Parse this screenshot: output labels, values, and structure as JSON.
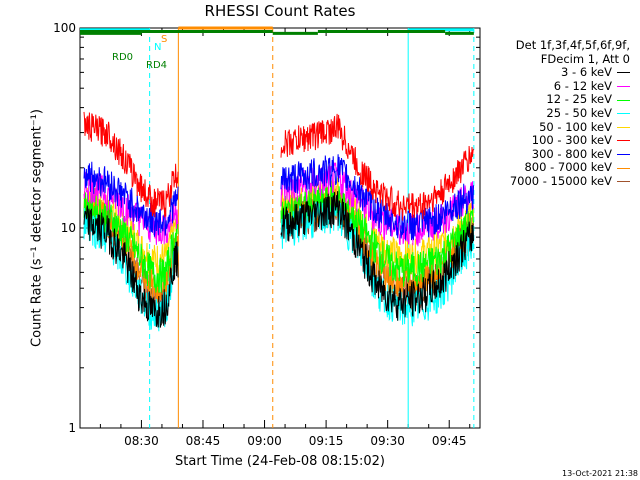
{
  "chart_data": {
    "type": "line",
    "title": "RHESSI Count Rates",
    "xlabel": "Start Time (24-Feb-08 08:15:02)",
    "ylabel": "Count Rate (s⁻¹ detector segment⁻¹)",
    "yscale": "log",
    "ylim": [
      1,
      100
    ],
    "xlim": [
      "08:15:02",
      "09:52:30"
    ],
    "x_ticks": [
      "08:30",
      "08:45",
      "09:00",
      "09:15",
      "09:30",
      "09:45"
    ],
    "y_ticks": [
      "1",
      "10",
      "100"
    ],
    "legend_header": [
      "Det 1f,3f,4f,5f,6f,9f,",
      "FDecim 1, Att 0"
    ],
    "legend_position": "right",
    "grid": false,
    "series": [
      {
        "name": "3 - 6 keV",
        "color": "#000000",
        "times": [
          "08:16",
          "08:22",
          "08:26",
          "08:30",
          "08:33",
          "08:36",
          "08:38",
          "09:18",
          "09:23",
          "09:28",
          "09:33",
          "09:38",
          "09:43",
          "09:47",
          "09:51"
        ],
        "values": [
          11,
          9.5,
          7,
          4.5,
          3.8,
          4.2,
          7,
          13,
          8,
          5,
          4.3,
          4.6,
          5.4,
          7.5,
          9.5
        ]
      },
      {
        "name": "6 - 12 keV",
        "color": "#ff00ff",
        "times": [
          "08:16",
          "08:22",
          "08:26",
          "08:30",
          "08:33",
          "08:36",
          "08:38",
          "09:18",
          "09:23",
          "09:28",
          "09:33",
          "09:38",
          "09:43",
          "09:47",
          "09:51"
        ],
        "values": [
          17,
          15,
          13,
          11,
          10,
          10,
          12,
          18,
          14,
          11,
          10,
          10,
          11,
          13,
          15
        ]
      },
      {
        "name": "12 - 25 keV",
        "color": "#00ff00",
        "times": [
          "08:16",
          "08:22",
          "08:26",
          "08:30",
          "08:33",
          "08:36",
          "08:38",
          "09:18",
          "09:23",
          "09:28",
          "09:33",
          "09:38",
          "09:43",
          "09:47",
          "09:51"
        ],
        "values": [
          13,
          11.5,
          9.5,
          7,
          5.8,
          6,
          9,
          14,
          10.5,
          7.5,
          6.2,
          6.4,
          7.2,
          9,
          11
        ]
      },
      {
        "name": "25 - 50 keV",
        "color": "#00ffff",
        "times": [
          "08:16",
          "08:22",
          "08:26",
          "08:30",
          "08:33",
          "08:36",
          "08:38",
          "09:18",
          "09:23",
          "09:28",
          "09:33",
          "09:38",
          "09:43",
          "09:47",
          "09:51"
        ],
        "values": [
          11,
          9,
          6.5,
          4.5,
          3.7,
          4,
          7,
          12,
          8,
          4.8,
          4,
          4.1,
          4.8,
          6.5,
          8.5
        ]
      },
      {
        "name": "50 - 100 keV",
        "color": "#ffd700",
        "times": [
          "08:16",
          "08:22",
          "08:26",
          "08:30",
          "08:33",
          "08:36",
          "08:38",
          "09:18",
          "09:23",
          "09:28",
          "09:33",
          "09:38",
          "09:43",
          "09:47",
          "09:51"
        ],
        "values": [
          14,
          12.5,
          10.5,
          8,
          7,
          7.2,
          10,
          15,
          11.5,
          8.5,
          7.2,
          7.4,
          8.2,
          10,
          12
        ]
      },
      {
        "name": "100 - 300 keV",
        "color": "#ff0000",
        "times": [
          "08:16",
          "08:22",
          "08:26",
          "08:30",
          "08:33",
          "08:36",
          "08:38",
          "09:18",
          "09:23",
          "09:28",
          "09:33",
          "09:38",
          "09:43",
          "09:47",
          "09:51"
        ],
        "values": [
          33,
          30,
          22,
          16,
          13.5,
          13.5,
          18,
          32,
          20,
          15,
          13,
          13,
          15,
          19,
          24
        ]
      },
      {
        "name": "300 - 800 keV",
        "color": "#0000ff",
        "times": [
          "08:16",
          "08:22",
          "08:26",
          "08:30",
          "08:33",
          "08:36",
          "08:38",
          "09:18",
          "09:23",
          "09:28",
          "09:33",
          "09:38",
          "09:43",
          "09:47",
          "09:51"
        ],
        "values": [
          19,
          17,
          14.5,
          12,
          11,
          11,
          13.5,
          20,
          15.5,
          12,
          10.5,
          10.5,
          11.5,
          13.5,
          15
        ]
      },
      {
        "name": "800 - 7000 keV",
        "color": "#ff8c00",
        "times": [
          "08:16",
          "08:22",
          "08:26",
          "08:30",
          "08:33",
          "08:36",
          "08:38",
          "09:18",
          "09:23",
          "09:28",
          "09:33",
          "09:38",
          "09:43",
          "09:47",
          "09:51"
        ],
        "values": [
          13,
          11,
          8.5,
          6,
          5,
          5.3,
          8,
          14,
          9.5,
          6.3,
          5.3,
          5.5,
          6.5,
          8.5,
          10.5
        ]
      },
      {
        "name": "7000 - 15000 keV",
        "color": "#a0522d",
        "times": [
          "08:16",
          "08:22",
          "08:26",
          "08:30",
          "08:33",
          "08:36",
          "08:38",
          "09:18",
          "09:23",
          "09:28",
          "09:33",
          "09:38",
          "09:43",
          "09:47",
          "09:51"
        ],
        "values": [
          12,
          10.5,
          8,
          5.5,
          4.6,
          5,
          7.5,
          13,
          9,
          5.8,
          4.8,
          5,
          6,
          8,
          10
        ]
      }
    ],
    "data_gaps": [
      [
        "08:39",
        "09:04"
      ]
    ],
    "vertical_markers": [
      {
        "time": "08:32",
        "color": "#00ffff",
        "style": "dashed"
      },
      {
        "time": "08:39",
        "color": "#ff8c00",
        "style": "solid"
      },
      {
        "time": "09:02",
        "color": "#ff8c00",
        "style": "dashed"
      },
      {
        "time": "09:35",
        "color": "#00ffff",
        "style": "solid"
      },
      {
        "time": "09:51",
        "color": "#00ffff",
        "style": "dashed"
      }
    ],
    "flag_bars": [
      {
        "label": "N",
        "color": "#00ffff",
        "spans": [
          [
            "08:15:02",
            "08:32"
          ],
          [
            "09:35",
            "09:51"
          ]
        ],
        "level": 98
      },
      {
        "label": "S",
        "color": "#ff8c00",
        "spans": [
          [
            "08:39",
            "09:02"
          ]
        ],
        "level": 100
      },
      {
        "label": "RD0",
        "color": "#008000",
        "spans": [
          [
            "08:15:02",
            "08:35"
          ],
          [
            "08:33",
            "09:02"
          ],
          [
            "09:13",
            "09:44"
          ]
        ],
        "level": 96
      },
      {
        "label": "RD4",
        "color": "#008000",
        "spans": [
          [
            "08:15:02",
            "08:30"
          ],
          [
            "09:02",
            "09:13"
          ],
          [
            "09:44",
            "09:51"
          ]
        ],
        "level": 94
      }
    ]
  },
  "footer_timestamp": "13-Oct-2021 21:38"
}
